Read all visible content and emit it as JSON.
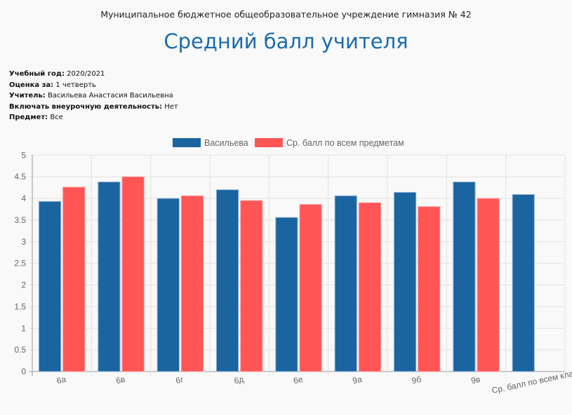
{
  "header": {
    "organization": "Муниципальное бюджетное общеобразовательное учреждение гимназия № 42",
    "title": "Средний балл учителя"
  },
  "info": [
    {
      "label": "Учебный год:",
      "value": "2020/2021"
    },
    {
      "label": "Оценка за:",
      "value": "1 четверть"
    },
    {
      "label": "Учитель:",
      "value": "Васильева Анастасия Васильевна"
    },
    {
      "label": "Включать внеурочную деятельность:",
      "value": "Нет"
    },
    {
      "label": "Предмет:",
      "value": "Все"
    }
  ],
  "chart_data": {
    "type": "bar",
    "categories": [
      "6а",
      "6в",
      "6г",
      "6д",
      "6е",
      "9а",
      "9б",
      "9в",
      "Ср. балл по всем классам"
    ],
    "series": [
      {
        "name": "Васильева",
        "color": "#1a64a0",
        "values": [
          3.93,
          4.38,
          4.0,
          4.2,
          3.56,
          4.06,
          4.14,
          4.38,
          4.09
        ]
      },
      {
        "name": "Ср. балл по всем предметам",
        "color": "#ff5555",
        "values": [
          4.26,
          4.5,
          4.06,
          3.95,
          3.86,
          3.9,
          3.81,
          4.0,
          null
        ]
      }
    ],
    "ylim": [
      0,
      5
    ],
    "yticks": [
      "0",
      "0.5",
      "1",
      "1.5",
      "2",
      "2.5",
      "3",
      "3.5",
      "4",
      "4.5",
      "5"
    ],
    "grid": true,
    "legend": "top"
  }
}
